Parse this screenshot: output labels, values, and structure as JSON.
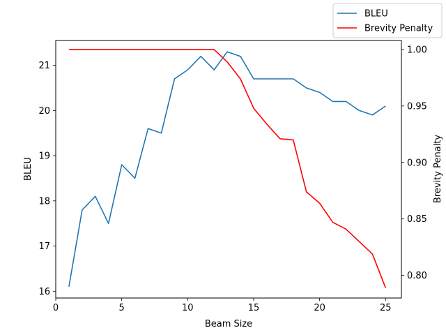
{
  "chart_data": {
    "type": "line",
    "xlabel": "Beam Size",
    "ylabel_left": "BLEU",
    "ylabel_right": "Brevity Penalty",
    "xlim": [
      0,
      26.2
    ],
    "ylim_left": [
      15.85,
      21.55
    ],
    "ylim_right": [
      0.78,
      1.008
    ],
    "xticks": [
      0,
      5,
      10,
      15,
      20,
      25
    ],
    "yticks_left": [
      16,
      17,
      18,
      19,
      20,
      21
    ],
    "yticks_right": [
      "0.80",
      "0.85",
      "0.90",
      "0.95",
      "1.00"
    ],
    "legend_position": "top-right outside",
    "grid": false,
    "x": [
      1,
      2,
      3,
      4,
      5,
      6,
      7,
      8,
      9,
      10,
      11,
      12,
      13,
      14,
      15,
      16,
      17,
      18,
      19,
      20,
      21,
      22,
      23,
      24,
      25
    ],
    "series": [
      {
        "name": "BLEU",
        "axis": "left",
        "color": "#1f77b4",
        "values": [
          16.1,
          17.8,
          18.1,
          17.5,
          18.8,
          18.5,
          19.6,
          19.5,
          20.7,
          20.9,
          21.2,
          20.9,
          21.3,
          21.2,
          20.7,
          20.7,
          20.7,
          20.7,
          20.5,
          20.4,
          20.2,
          20.2,
          20.0,
          19.9,
          20.1
        ]
      },
      {
        "name": "Brevity Penalty",
        "axis": "right",
        "color": "#ff0000",
        "values": [
          1.0,
          1.0,
          1.0,
          1.0,
          1.0,
          1.0,
          1.0,
          1.0,
          1.0,
          1.0,
          1.0,
          1.0,
          0.989,
          0.974,
          0.948,
          0.934,
          0.921,
          0.92,
          0.874,
          0.864,
          0.847,
          0.841,
          0.83,
          0.819,
          0.789
        ]
      }
    ]
  }
}
